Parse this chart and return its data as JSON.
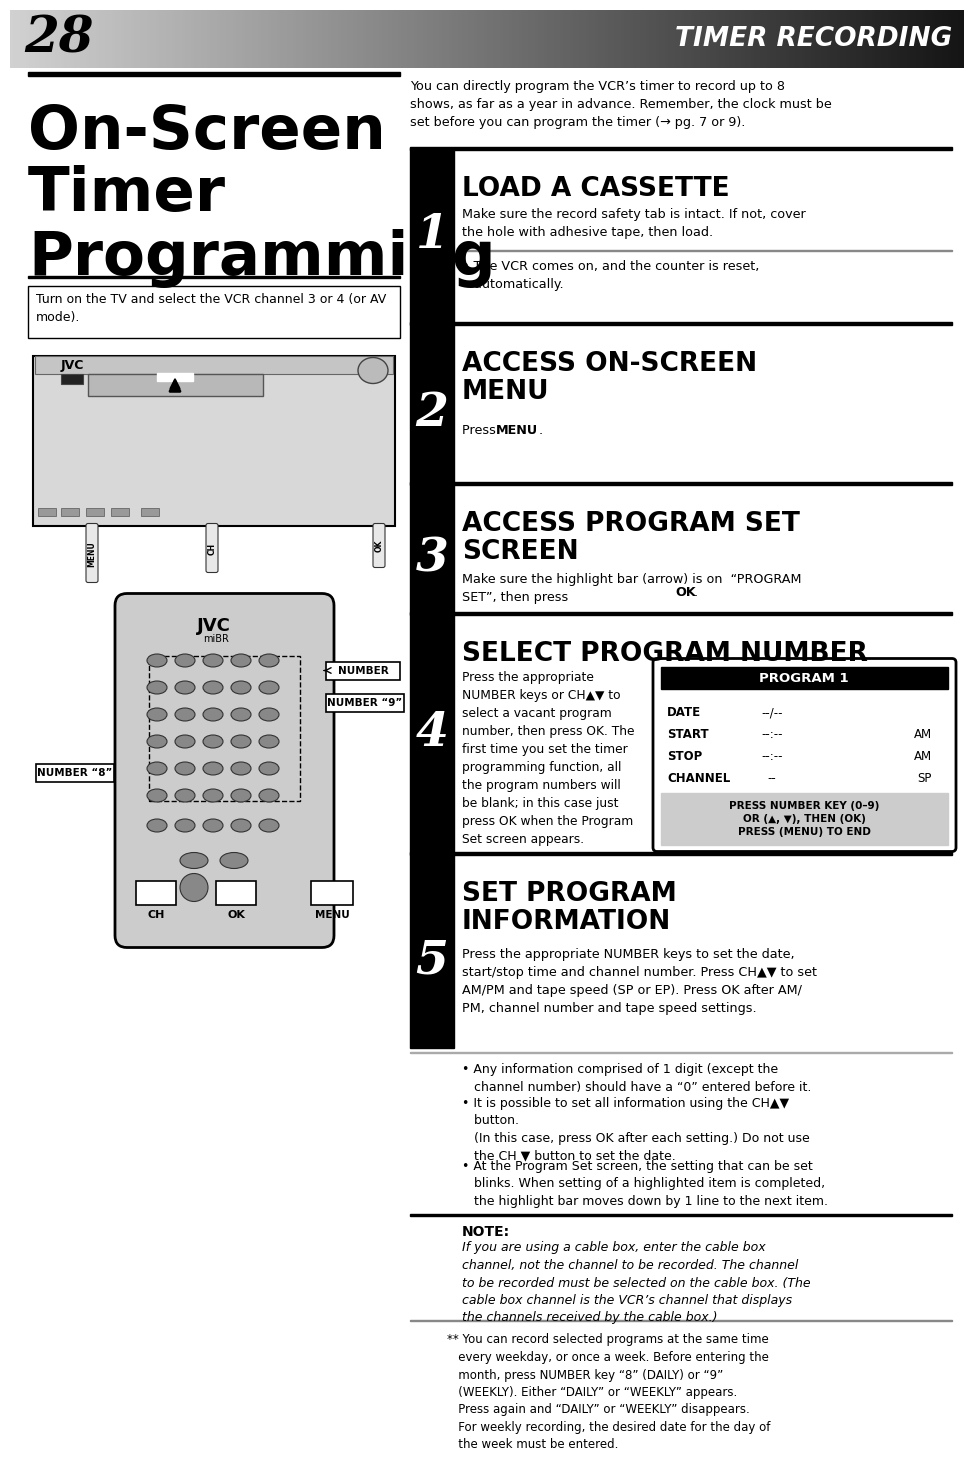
{
  "page_number": "28",
  "header_title": "TIMER RECORDING",
  "main_title_lines": [
    "On-Screen",
    "Timer",
    "Programming"
  ],
  "instruction_box": "Turn on the TV and select the VCR channel 3 or 4 (or AV\nmode).",
  "intro_text": "You can directly program the VCR’s timer to record up to 8\nshows, as far as a year in advance. Remember, the clock must be\nset before you can program the timer (→ pg. 7 or 9).",
  "step1_heading": "LOAD A CASSETTE",
  "step1_body": "Make sure the record safety tab is intact. If not, cover\nthe hole with adhesive tape, then load.",
  "step1_bullet": "• The VCR comes on, and the counter is reset,\n   automatically.",
  "step2_heading": "ACCESS ON-SCREEN\nMENU",
  "step2_body1": "Press ",
  "step2_body_bold": "MENU",
  "step2_body2": ".",
  "step3_heading": "ACCESS PROGRAM SET\nSCREEN",
  "step3_body": "Make sure the highlight bar (arrow) is on  “PROGRAM\nSET”, then press ",
  "step3_body_bold": "OK",
  "step3_body_end": ".",
  "step4_heading": "SELECT PROGRAM NUMBER",
  "step4_body": "Press the appropriate\nNUMBER keys or CH▲▼ to\nselect a vacant program\nnumber, then press OK. The\nfirst time you set the timer\nprogramming function, all\nthe program numbers will\nbe blank; in this case just\npress OK when the Program\nSet screen appears.",
  "step5_heading": "SET PROGRAM\nINFORMATION",
  "step5_body": "Press the appropriate NUMBER keys to set the date,\nstart/stop time and channel number. Press CH▲▼ to set\nAM/PM and tape speed (SP or EP). Press OK after AM/\nPM, channel number and tape speed settings.",
  "bullet1": "• Any information comprised of 1 digit (except the\n   channel number) should have a “0” entered before it.",
  "bullet2": "• It is possible to set all information using the CH▲▼\n   button.\n   (In this case, press OK after each setting.) Do not use\n   the CH ▼ button to set the date.",
  "bullet3": "• At the Program Set screen, the setting that can be set\n   blinks. When setting of a highlighted item is completed,\n   the highlight bar moves down by 1 line to the next item.",
  "note_title": "NOTE:",
  "note_body": "If you are using a cable box, enter the cable box\nchannel, not the channel to be recorded. The channel\nto be recorded must be selected on the cable box. (The\ncable box channel is the VCR’s channel that displays\nthe channels received by the cable box.)",
  "footnote": "** You can record selected programs at the same time\n   every weekday, or once a week. Before entering the\n   month, press NUMBER key “8” (DAILY) or “9”\n   (WEEKLY). Either “DAILY” or “WEEKLY” appears.\n   Press again and “DAILY” or “WEEKLY” disappears.\n   For weekly recording, the desired date for the day of\n   the week must be entered.",
  "prog_rows": [
    [
      "DATE",
      "--/--",
      ""
    ],
    [
      "START",
      "--:--",
      "AM"
    ],
    [
      "STOP",
      "--:--",
      "AM"
    ],
    [
      "CHANNEL",
      "--",
      "SP"
    ]
  ],
  "prog_footer": "PRESS NUMBER KEY (0–9)\nOR (▲, ▼), THEN (OK)\nPRESS (MENU) TO END",
  "bg_color": "#ffffff"
}
